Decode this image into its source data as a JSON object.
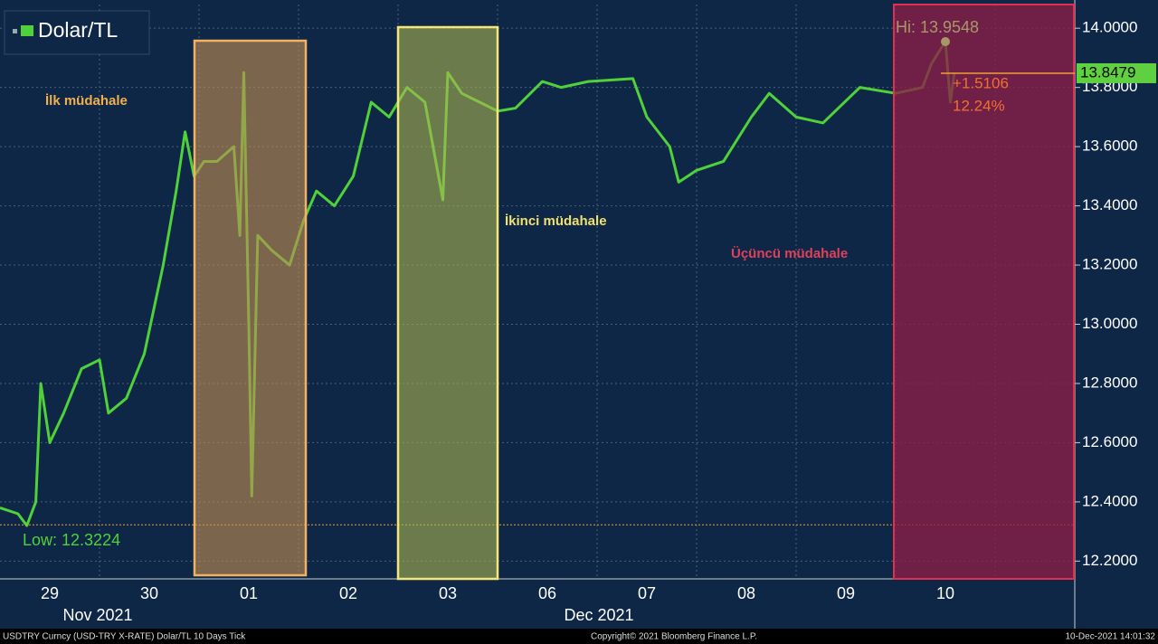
{
  "chart_data": {
    "type": "line",
    "legend": "Dolar/TL",
    "x": [
      0,
      0.18,
      0.27,
      0.36,
      0.41,
      0.5,
      0.64,
      0.82,
      1.0,
      1.09,
      1.27,
      1.45,
      1.64,
      1.77,
      1.86,
      1.95,
      2.05,
      2.18,
      2.35,
      2.41,
      2.45,
      2.5,
      2.53,
      2.59,
      2.73,
      2.91,
      3.05,
      3.18,
      3.36,
      3.55,
      3.73,
      3.91,
      4.09,
      4.27,
      4.45,
      4.5,
      4.64,
      4.82,
      5.0,
      5.18,
      5.45,
      5.64,
      5.91,
      6.36,
      6.5,
      6.73,
      6.82,
      7.0,
      7.27,
      7.55,
      7.73,
      8.0,
      8.27,
      8.64,
      9.0,
      9.27,
      9.36,
      9.5,
      9.55,
      9.59
    ],
    "series": [
      {
        "name": "Dolar/TL",
        "color": "#4fd13a",
        "values": [
          12.38,
          12.36,
          12.32,
          12.4,
          12.8,
          12.6,
          12.7,
          12.85,
          12.88,
          12.7,
          12.75,
          12.9,
          13.2,
          13.45,
          13.65,
          13.5,
          13.55,
          13.55,
          13.6,
          13.3,
          13.85,
          13.0,
          12.42,
          13.3,
          13.25,
          13.2,
          13.35,
          13.45,
          13.4,
          13.5,
          13.75,
          13.7,
          13.8,
          13.75,
          13.42,
          13.85,
          13.78,
          13.75,
          13.72,
          13.73,
          13.82,
          13.8,
          13.82,
          13.83,
          13.7,
          13.6,
          13.48,
          13.52,
          13.55,
          13.7,
          13.78,
          13.7,
          13.68,
          13.8,
          13.78,
          13.8,
          13.88,
          13.955,
          13.75,
          13.85
        ]
      }
    ],
    "xlim": [
      0,
      10.8
    ],
    "xticks": [
      {
        "value": 0.5,
        "label": "29"
      },
      {
        "value": 1.5,
        "label": "30"
      },
      {
        "value": 2.5,
        "label": "01"
      },
      {
        "value": 3.5,
        "label": "02"
      },
      {
        "value": 4.5,
        "label": "03"
      },
      {
        "value": 5.5,
        "label": "06"
      },
      {
        "value": 6.5,
        "label": "07"
      },
      {
        "value": 7.5,
        "label": "08"
      },
      {
        "value": 8.5,
        "label": "09"
      },
      {
        "value": 9.5,
        "label": "10"
      }
    ],
    "months": [
      "Nov 2021",
      "Dec 2021"
    ],
    "ylim": [
      12.14,
      14.08
    ],
    "yticks": [
      {
        "value": 12.2,
        "label": "12.2000"
      },
      {
        "value": 12.4,
        "label": "12.4000"
      },
      {
        "value": 12.6,
        "label": "12.6000"
      },
      {
        "value": 12.8,
        "label": "12.8000"
      },
      {
        "value": 13.0,
        "label": "13.0000"
      },
      {
        "value": 13.2,
        "label": "13.2000"
      },
      {
        "value": 13.4,
        "label": "13.4000"
      },
      {
        "value": 13.6,
        "label": "13.6000"
      },
      {
        "value": 13.8,
        "label": "13.8000"
      },
      {
        "value": 14.0,
        "label": "14.0000"
      }
    ],
    "grid": true,
    "annotations": [
      "İlk müdahale",
      "İkinci müdahale",
      "Üçüncü müdahale"
    ],
    "high": {
      "value": 13.9548,
      "label": "Hi: 13.9548"
    },
    "low": {
      "value": 12.3224,
      "label": "Low: 12.3224"
    },
    "last": {
      "value": 13.8479,
      "label": "13.8479"
    },
    "change": "+1.5106",
    "change_pct": "12.24%",
    "footer": [
      "USDTRY Curncy (USD-TRY X-RATE) Dolar/TL 10 Days  Tick",
      "Copyright© 2021 Bloomberg Finance L.P.",
      "10-Dec-2021 14:01:32"
    ]
  }
}
